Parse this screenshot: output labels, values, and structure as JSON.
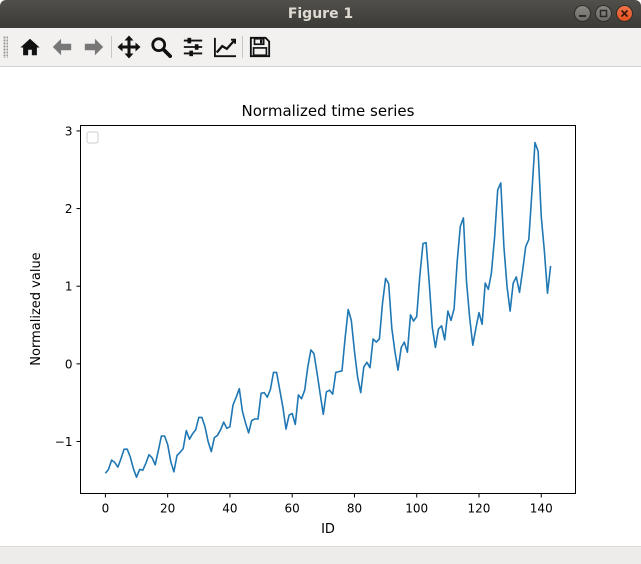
{
  "window": {
    "title": "Figure 1"
  },
  "toolbar": {
    "buttons": [
      {
        "name": "home",
        "icon": "home-icon"
      },
      {
        "name": "back",
        "icon": "arrow-left-icon"
      },
      {
        "name": "forward",
        "icon": "arrow-right-icon"
      },
      {
        "name": "pan",
        "icon": "move-icon"
      },
      {
        "name": "zoom",
        "icon": "zoom-icon"
      },
      {
        "name": "subplots",
        "icon": "sliders-icon"
      },
      {
        "name": "customize",
        "icon": "line-chart-icon"
      },
      {
        "name": "save",
        "icon": "save-icon"
      }
    ]
  },
  "chart_data": {
    "type": "line",
    "title": "Normalized time series",
    "xlabel": "ID",
    "ylabel": "Normalized value",
    "xlim": [
      -8,
      151
    ],
    "ylim": [
      -1.67,
      3.07
    ],
    "xticks": [
      0,
      20,
      40,
      60,
      80,
      100,
      120,
      140
    ],
    "yticks": [
      -1,
      0,
      1,
      2,
      3
    ],
    "legend": "top-left (empty)",
    "grid": false,
    "color": "#1f77b4",
    "x_start": 0,
    "values": [
      -1.41,
      -1.36,
      -1.24,
      -1.27,
      -1.33,
      -1.22,
      -1.1,
      -1.1,
      -1.2,
      -1.35,
      -1.46,
      -1.36,
      -1.37,
      -1.28,
      -1.17,
      -1.21,
      -1.3,
      -1.12,
      -0.93,
      -0.93,
      -1.04,
      -1.26,
      -1.39,
      -1.18,
      -1.14,
      -1.09,
      -0.86,
      -0.97,
      -0.9,
      -0.85,
      -0.69,
      -0.69,
      -0.81,
      -1.0,
      -1.13,
      -0.95,
      -0.92,
      -0.85,
      -0.75,
      -0.83,
      -0.81,
      -0.53,
      -0.43,
      -0.32,
      -0.61,
      -0.76,
      -0.89,
      -0.73,
      -0.71,
      -0.71,
      -0.38,
      -0.37,
      -0.43,
      -0.33,
      -0.11,
      -0.11,
      -0.33,
      -0.56,
      -0.84,
      -0.66,
      -0.64,
      -0.78,
      -0.4,
      -0.45,
      -0.34,
      -0.04,
      0.18,
      0.13,
      -0.12,
      -0.39,
      -0.65,
      -0.36,
      -0.34,
      -0.39,
      -0.11,
      -0.1,
      -0.09,
      0.33,
      0.7,
      0.56,
      0.16,
      -0.17,
      -0.37,
      -0.04,
      0.02,
      -0.05,
      0.32,
      0.28,
      0.32,
      0.78,
      1.1,
      1.03,
      0.46,
      0.16,
      -0.08,
      0.21,
      0.28,
      0.15,
      0.63,
      0.55,
      0.61,
      1.13,
      1.55,
      1.56,
      1.05,
      0.47,
      0.21,
      0.45,
      0.49,
      0.31,
      0.68,
      0.56,
      0.71,
      1.32,
      1.77,
      1.88,
      1.06,
      0.59,
      0.24,
      0.46,
      0.66,
      0.51,
      1.04,
      0.96,
      1.17,
      1.63,
      2.24,
      2.33,
      1.51,
      1.0,
      0.68,
      1.04,
      1.12,
      0.92,
      1.2,
      1.51,
      1.6,
      2.21,
      2.85,
      2.74,
      1.89,
      1.45,
      0.91,
      1.26
    ]
  }
}
